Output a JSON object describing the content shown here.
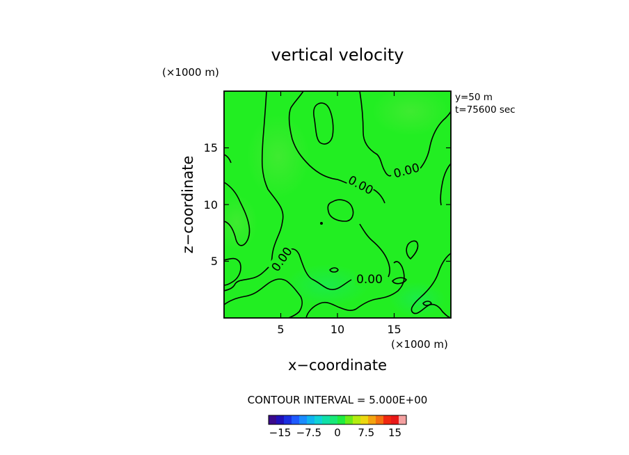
{
  "chart_data": {
    "type": "heatmap",
    "title": "vertical velocity",
    "xlabel": "x−coordinate",
    "ylabel": "z−coordinate",
    "x_unit": "(×1000 m)",
    "y_unit": "(×1000 m)",
    "xlim": [
      0,
      20
    ],
    "ylim": [
      0,
      20
    ],
    "xticks": [
      5,
      10,
      15
    ],
    "yticks": [
      5,
      10,
      15
    ],
    "xtick_labels": [
      "5",
      "10",
      "15"
    ],
    "ytick_labels": [
      "5",
      "10",
      "15"
    ],
    "info_lines": [
      "y=50 m",
      "t=75600 sec"
    ],
    "contour_interval_text": "CONTOUR INTERVAL = 5.000E+00",
    "contour_level": 0,
    "contour_labels": [
      "0.00",
      "0.00",
      "0.00",
      "0.00"
    ],
    "field_color": "#22ee22",
    "colorbar": {
      "colors": [
        "#3a0a8c",
        "#2010b8",
        "#1a2fe0",
        "#1e5aff",
        "#1a8cff",
        "#10b4f0",
        "#10d2d8",
        "#10e0a8",
        "#18e878",
        "#20ec40",
        "#6cec18",
        "#b4ec10",
        "#ecd810",
        "#f4a410",
        "#f47010",
        "#f02810",
        "#e81818",
        "#f4a0a0"
      ],
      "tick_values": [
        -15,
        -7.5,
        0,
        7.5,
        15
      ],
      "tick_labels": [
        "−15",
        "−7.5",
        "0",
        "7.5",
        "15"
      ],
      "range": [
        -18,
        18
      ]
    }
  }
}
